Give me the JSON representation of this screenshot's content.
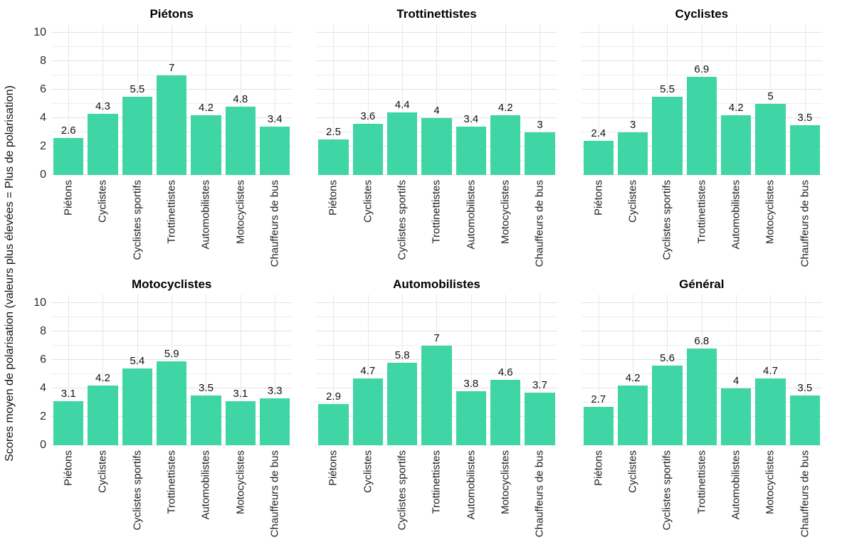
{
  "figure": {
    "ylabel": "Scores moyen de polarisation (valeurs plus élevées = Plus de polarisation)"
  },
  "chart_data": {
    "type": "bar",
    "layout": "facet-grid-2x3",
    "categories": [
      "Piétons",
      "Cyclistes",
      "Cyclistes sportifs",
      "Trottinettistes",
      "Automobilistes",
      "Motocyclistes",
      "Chauffeurs de bus"
    ],
    "facets": [
      {
        "title": "Piétons",
        "values": [
          2.6,
          4.3,
          5.5,
          7,
          4.2,
          4.8,
          3.4
        ]
      },
      {
        "title": "Trottinettistes",
        "values": [
          2.5,
          3.6,
          4.4,
          4,
          3.4,
          4.2,
          3
        ]
      },
      {
        "title": "Cyclistes",
        "values": [
          2.4,
          3,
          5.5,
          6.9,
          4.2,
          5,
          3.5
        ]
      },
      {
        "title": "Motocyclistes",
        "values": [
          3.1,
          4.2,
          5.4,
          5.9,
          3.5,
          3.1,
          3.3
        ]
      },
      {
        "title": "Automobilistes",
        "values": [
          2.9,
          4.7,
          5.8,
          7,
          3.8,
          4.6,
          3.7
        ]
      },
      {
        "title": "Général",
        "values": [
          2.7,
          4.2,
          5.6,
          6.8,
          4,
          4.7,
          3.5
        ]
      }
    ],
    "ylabel": "Scores moyen de polarisation (valeurs plus élevées = Plus de polarisation)",
    "xlabel": "",
    "yticks": [
      0,
      2,
      4,
      6,
      8,
      10
    ],
    "ylim": [
      0,
      10.6
    ],
    "grid": true,
    "bar_color": "#40d5a4",
    "value_label_color": "#111111",
    "grid_major_color": "#e2e2e2",
    "grid_minor_color": "#ededed"
  }
}
